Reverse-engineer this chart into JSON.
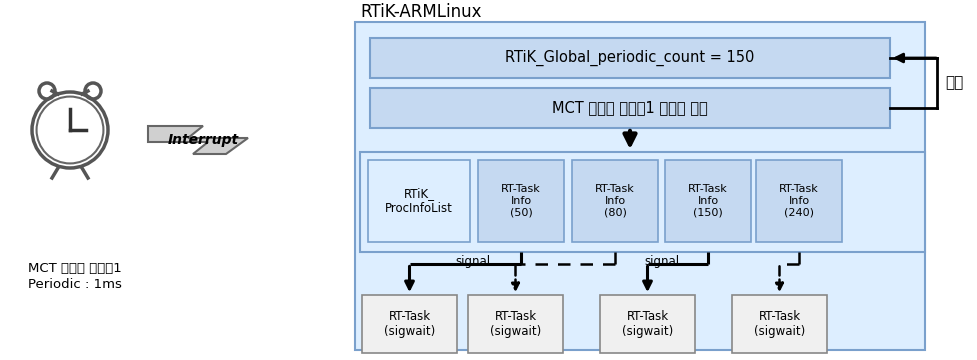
{
  "title": "RTiK-ARMLinux",
  "box1_text": "RTiK_Global_periodic_count = 150",
  "box2_text": "MCT 글로벌 타이먈1 햨들러 함수",
  "procinfo_text": "RTiK_\nProcInfoList",
  "rt_tasks": [
    "RT-Task\nInfo\n(50)",
    "RT-Task\nInfo\n(80)",
    "RT-Task\nInfo\n(150)",
    "RT-Task\nInfo\n(240)"
  ],
  "sigwait_tasks": [
    "RT-Task\n(sigwait)",
    "RT-Task\n(sigwait)",
    "RT-Task\n(sigwait)",
    "RT-Task\n(sigwait)"
  ],
  "increase_label": "증가",
  "signal_labels": [
    "signal",
    "signal"
  ],
  "timer_label1": "MCT 글로벌 타이먈1",
  "timer_label2": "Periodic : 1ms",
  "interrupt_label": "Interrupt",
  "outer_box_facecolor": "#ddeeff",
  "outer_box_edgecolor": "#7aa0cc",
  "inner_box_facecolor": "#c5d9f1",
  "inner_box_edgecolor": "#7aa0cc",
  "mid_box_facecolor": "#ddeeff",
  "mid_box_edgecolor": "#7aa0cc",
  "rt_info_facecolor": "#ddeeff",
  "rt_info_edgecolor": "#7aa0cc",
  "sigwait_facecolor": "#f0f0f0",
  "sigwait_edgecolor": "#888888",
  "bg_color": "#ffffff"
}
